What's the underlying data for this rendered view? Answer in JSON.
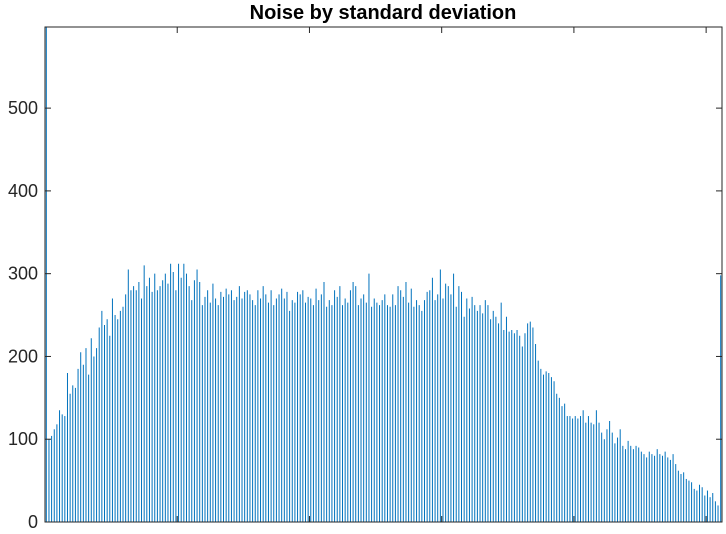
{
  "chart_data": {
    "type": "bar",
    "title": "Noise by standard deviation",
    "xlabel": "",
    "ylabel": "",
    "xlim": [
      0,
      256
    ],
    "ylim": [
      0,
      598
    ],
    "yticks": [
      "0",
      "100",
      "200",
      "300",
      "400",
      "500"
    ],
    "show_x_tick_labels": false,
    "grid": false,
    "bar_color": "#0072BD",
    "axis_color": "#262626",
    "series": [
      {
        "values": [
          598,
          100,
          104,
          112,
          118,
          135,
          130,
          128,
          180,
          155,
          165,
          162,
          185,
          205,
          190,
          210,
          178,
          222,
          200,
          210,
          235,
          255,
          238,
          245,
          225,
          270,
          250,
          245,
          255,
          260,
          275,
          305,
          280,
          285,
          280,
          290,
          270,
          310,
          285,
          295,
          278,
          300,
          280,
          285,
          292,
          300,
          288,
          312,
          302,
          280,
          312,
          295,
          312,
          300,
          285,
          268,
          292,
          305,
          290,
          262,
          272,
          280,
          265,
          288,
          270,
          262,
          278,
          272,
          282,
          275,
          280,
          268,
          272,
          285,
          270,
          278,
          280,
          275,
          268,
          262,
          280,
          270,
          285,
          275,
          265,
          280,
          262,
          270,
          275,
          282,
          270,
          278,
          255,
          268,
          265,
          278,
          275,
          280,
          265,
          272,
          270,
          262,
          282,
          268,
          275,
          290,
          260,
          268,
          262,
          280,
          272,
          285,
          262,
          270,
          265,
          280,
          290,
          285,
          262,
          270,
          275,
          265,
          300,
          260,
          270,
          265,
          262,
          268,
          275,
          262,
          260,
          275,
          262,
          285,
          280,
          272,
          290,
          265,
          282,
          260,
          268,
          262,
          255,
          268,
          278,
          280,
          295,
          268,
          275,
          305,
          270,
          288,
          285,
          275,
          300,
          260,
          285,
          278,
          248,
          270,
          258,
          272,
          262,
          255,
          262,
          252,
          268,
          262,
          245,
          255,
          248,
          240,
          265,
          232,
          248,
          230,
          232,
          228,
          232,
          225,
          212,
          228,
          240,
          242,
          235,
          215,
          195,
          185,
          178,
          182,
          180,
          175,
          170,
          155,
          150,
          140,
          143,
          128,
          128,
          125,
          128,
          125,
          128,
          135,
          120,
          128,
          120,
          118,
          135,
          120,
          108,
          100,
          112,
          122,
          108,
          95,
          102,
          112,
          92,
          88,
          98,
          92,
          88,
          92,
          90,
          85,
          82,
          78,
          85,
          82,
          80,
          88,
          82,
          80,
          85,
          78,
          75,
          82,
          70,
          62,
          58,
          60,
          52,
          50,
          48,
          40,
          38,
          45,
          42,
          32,
          38,
          30,
          35,
          25,
          20,
          298
        ]
      }
    ]
  }
}
